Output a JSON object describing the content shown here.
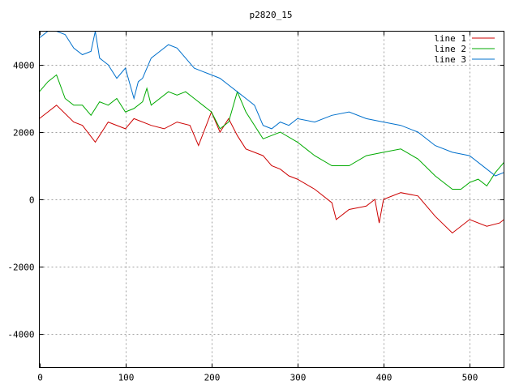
{
  "chart_data": {
    "type": "line",
    "title": "p2820_15",
    "xlim": [
      0,
      540
    ],
    "ylim": [
      -5000,
      5000
    ],
    "x_ticks": [
      0,
      100,
      200,
      300,
      400,
      500
    ],
    "y_ticks": [
      -4000,
      -2000,
      0,
      2000,
      4000
    ],
    "grid": true,
    "legend_position": "top-right",
    "series": [
      {
        "name": "line 1",
        "color": "#cc0000",
        "x": [
          0,
          10,
          20,
          40,
          50,
          65,
          80,
          100,
          110,
          130,
          145,
          160,
          175,
          185,
          200,
          210,
          220,
          230,
          240,
          260,
          270,
          280,
          290,
          300,
          320,
          340,
          345,
          360,
          380,
          390,
          395,
          400,
          420,
          440,
          450,
          460,
          480,
          500,
          520,
          535,
          540
        ],
        "y": [
          2400,
          2600,
          2800,
          2300,
          2200,
          1700,
          2300,
          2100,
          2400,
          2200,
          2100,
          2300,
          2200,
          1600,
          2600,
          2000,
          2400,
          1900,
          1500,
          1300,
          1000,
          900,
          700,
          600,
          300,
          -100,
          -600,
          -300,
          -200,
          0,
          -700,
          0,
          200,
          100,
          -200,
          -500,
          -1000,
          -600,
          -800,
          -700,
          -600
        ]
      },
      {
        "name": "line 2",
        "color": "#00aa00",
        "x": [
          0,
          10,
          20,
          30,
          40,
          50,
          60,
          70,
          80,
          90,
          100,
          110,
          120,
          125,
          130,
          150,
          160,
          170,
          180,
          190,
          200,
          210,
          220,
          230,
          240,
          260,
          270,
          280,
          300,
          320,
          340,
          360,
          380,
          400,
          420,
          440,
          460,
          480,
          490,
          500,
          510,
          520,
          530,
          540
        ],
        "y": [
          3200,
          3500,
          3700,
          3000,
          2800,
          2800,
          2500,
          2900,
          2800,
          3000,
          2600,
          2700,
          2900,
          3300,
          2800,
          3200,
          3100,
          3200,
          3000,
          2800,
          2600,
          2100,
          2300,
          3200,
          2600,
          1800,
          1900,
          2000,
          1700,
          1300,
          1000,
          1000,
          1300,
          1400,
          1500,
          1200,
          700,
          300,
          300,
          500,
          600,
          400,
          800,
          1100
        ]
      },
      {
        "name": "line 3",
        "color": "#0070cc",
        "x": [
          0,
          10,
          20,
          30,
          40,
          50,
          60,
          65,
          70,
          80,
          90,
          100,
          110,
          115,
          120,
          130,
          140,
          150,
          160,
          170,
          180,
          190,
          200,
          210,
          220,
          230,
          240,
          250,
          260,
          270,
          280,
          290,
          300,
          320,
          340,
          360,
          380,
          400,
          420,
          440,
          460,
          480,
          500,
          520,
          530,
          540
        ],
        "y": [
          4800,
          5000,
          5000,
          4900,
          4500,
          4300,
          4400,
          5000,
          4200,
          4000,
          3600,
          3900,
          3000,
          3500,
          3600,
          4200,
          4400,
          4600,
          4500,
          4200,
          3900,
          3800,
          3700,
          3600,
          3400,
          3200,
          3000,
          2800,
          2200,
          2100,
          2300,
          2200,
          2400,
          2300,
          2500,
          2600,
          2400,
          2300,
          2200,
          2000,
          1600,
          1400,
          1300,
          900,
          700,
          800
        ]
      }
    ]
  }
}
